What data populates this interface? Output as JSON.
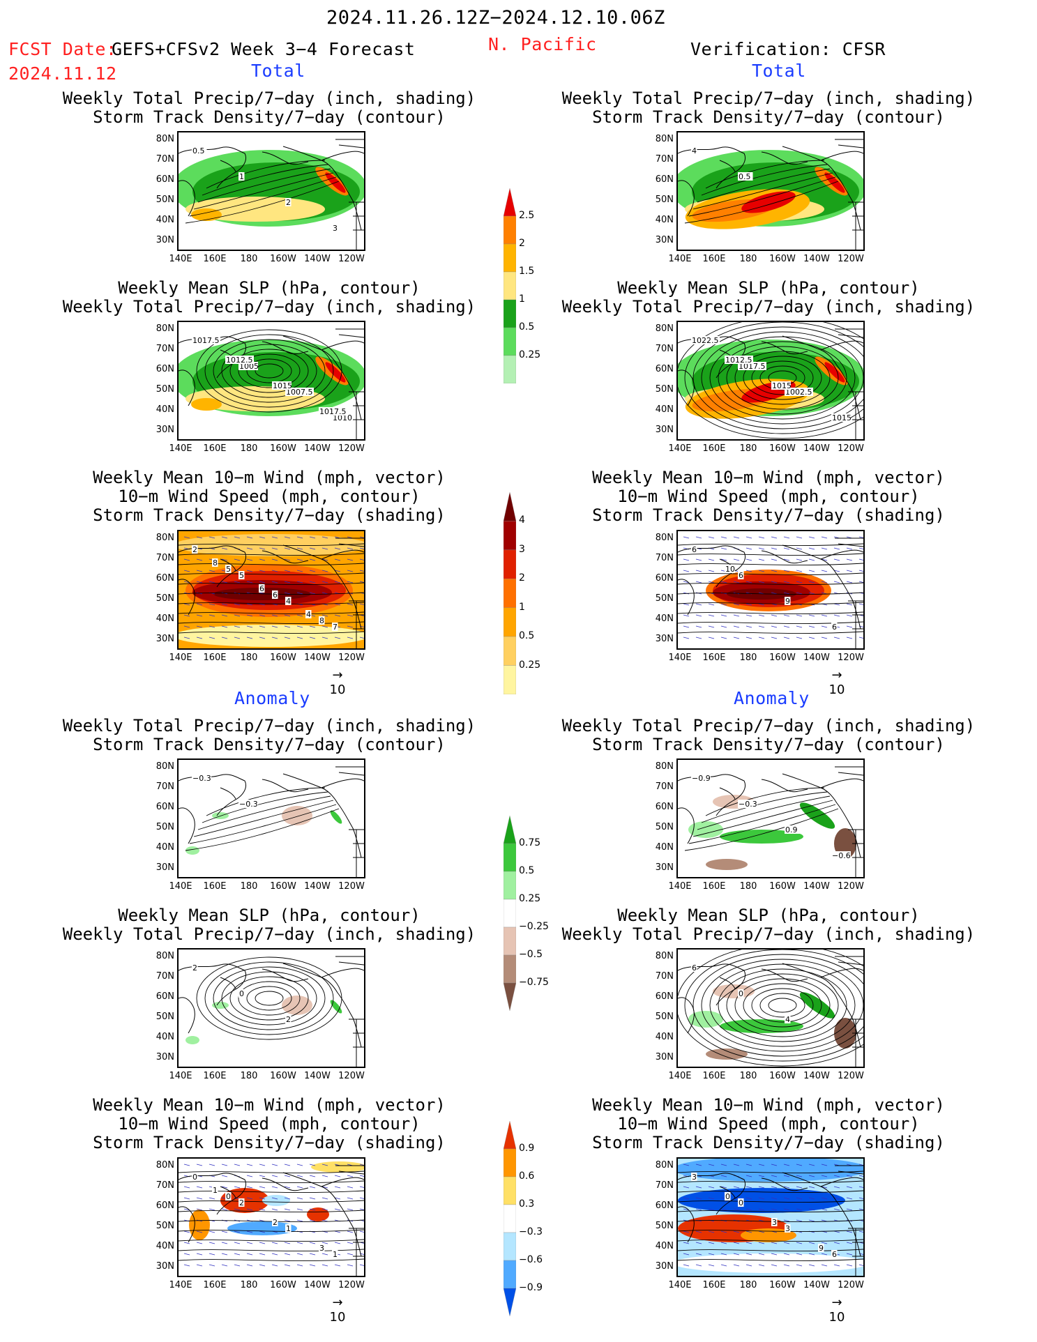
{
  "header": {
    "date_range": "2024.11.26.12Z−2024.12.10.06Z",
    "fcst_label": "FCST Date:",
    "fcst_model": "GEFS+CFSv2 Week 3−4 Forecast",
    "fcst_date": "2024.11.12",
    "region": "N. Pacific",
    "verification": "Verification: CFSR"
  },
  "sections": {
    "total": "Total",
    "anomaly": "Anomaly"
  },
  "axes": {
    "lat_ticks": [
      "80N",
      "70N",
      "60N",
      "50N",
      "40N",
      "30N"
    ],
    "lon_ticks": [
      "140E",
      "160E",
      "180",
      "160W",
      "140W",
      "120W"
    ]
  },
  "vector_scale": "10",
  "titles": {
    "precip_storm": [
      "Weekly Total Precip/7−day (inch, shading)",
      "Storm Track Density/7−day (contour)"
    ],
    "slp_precip": [
      "Weekly Mean SLP (hPa, contour)",
      "Weekly Total Precip/7−day (inch, shading)"
    ],
    "wind_storm": [
      "Weekly Mean 10−m Wind (mph, vector)",
      "10−m Wind Speed (mph, contour)",
      "Storm Track Density/7−day (shading)"
    ]
  },
  "colorbars": {
    "total_precip": [
      "2.5",
      "2",
      "1.5",
      "1",
      "0.5",
      "0.25"
    ],
    "total_storm": [
      "4",
      "3",
      "2",
      "1",
      "0.5",
      "0.25"
    ],
    "anom_precip": [
      "0.75",
      "0.5",
      "0.25",
      "−0.25",
      "−0.5",
      "−0.75"
    ],
    "anom_storm": [
      "0.9",
      "0.6",
      "0.3",
      "−0.3",
      "−0.6",
      "−0.9"
    ]
  },
  "colors": {
    "precip_total": [
      "#ffffff",
      "#b4f0b4",
      "#5cdc5c",
      "#1aa21a",
      "#ffe680",
      "#ffb400",
      "#ff8000",
      "#e60000"
    ],
    "storm_total": [
      "#ffffff",
      "#fff5a0",
      "#ffd060",
      "#ffa500",
      "#ff7000",
      "#e02000",
      "#a00000",
      "#700000"
    ],
    "precip_anom": [
      "#1aa21a",
      "#3cc83c",
      "#a0f0a0",
      "#ffffff",
      "#e6c4b4",
      "#b48c78",
      "#7a5040"
    ],
    "storm_anom": [
      "#e63200",
      "#ff9600",
      "#ffe066",
      "#ffffff",
      "#b4e6ff",
      "#50aaff",
      "#0050e6"
    ]
  },
  "contour_labels": {
    "p1_left": [
      "0.5",
      "1",
      "2",
      "3"
    ],
    "p1_right": [
      "4",
      "0.5"
    ],
    "p2_left": [
      "1017.5",
      "1005",
      "1007.5",
      "1010",
      "1012.5",
      "1015",
      "1017.5"
    ],
    "p2_right": [
      "1022.5",
      "1017.5",
      "1002.5",
      "1015",
      "1012.5",
      "1015"
    ],
    "p3_left": [
      "2",
      "5",
      "4",
      "7",
      "5",
      "6",
      "8",
      "8",
      "6",
      "4"
    ],
    "p3_right": [
      "6",
      "6",
      "9",
      "6",
      "10"
    ],
    "p4_left": [
      "−0.3",
      "−0.3"
    ],
    "p4_right": [
      "−0.9",
      "−0.3",
      "0.9",
      "−0.6"
    ],
    "p5_left": [
      "2",
      "0",
      "2"
    ],
    "p5_right": [
      "6",
      "0",
      "4"
    ],
    "p6_left": [
      "0",
      "2",
      "1",
      "1",
      "0",
      "2",
      "3",
      "1"
    ],
    "p6_right": [
      "3",
      "0",
      "3",
      "6",
      "0",
      "3",
      "9"
    ]
  }
}
